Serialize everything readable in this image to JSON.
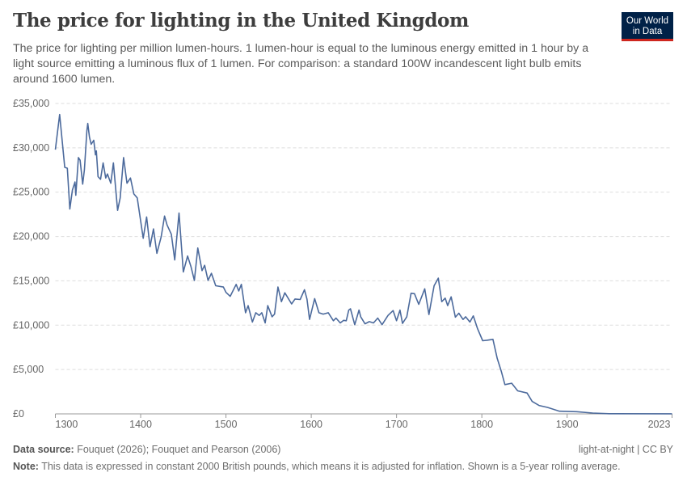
{
  "header": {
    "title": "The price for lighting in the United Kingdom",
    "subtitle": "The price for lighting per million lumen-hours. 1 lumen-hour is equal to the luminous energy emitted in 1 hour by a light source emitting a luminous flux of 1 lumen. For comparison: a standard 100W incandescent light bulb emits around 1600 lumen.",
    "logo": "Our World in Data"
  },
  "footer": {
    "source_label": "Data source:",
    "source": "Fouquet (2026); Fouquet and Pearson (2006)",
    "note_label": "Note:",
    "note": "This data is expressed in constant 2000 British pounds, which means it is adjusted for inflation. Shown is a 5-year rolling average.",
    "license": "light-at-night | CC BY"
  },
  "colors": {
    "line": "#4c6a9c",
    "grid": "#dddddd",
    "text": "#5b5b5b"
  },
  "chart_data": {
    "type": "line",
    "title": "The price for lighting in the United Kingdom",
    "xlim": [
      1300,
      2023
    ],
    "ylim": [
      0,
      35000
    ],
    "grid": true,
    "x_ticks": [
      "1300",
      "1400",
      "1500",
      "1600",
      "1700",
      "1800",
      "1900",
      "2023"
    ],
    "y_ticks": [
      "£0",
      "£5,000",
      "£10,000",
      "£15,000",
      "£20,000",
      "£25,000",
      "£30,000",
      "£35,000"
    ],
    "series": [
      {
        "points": [
          [
            1300,
            29800
          ],
          [
            1305,
            33750
          ],
          [
            1311,
            27800
          ],
          [
            1314,
            27700
          ],
          [
            1317,
            23100
          ],
          [
            1320,
            25250
          ],
          [
            1323,
            26150
          ],
          [
            1324,
            24650
          ],
          [
            1327,
            28900
          ],
          [
            1329,
            28600
          ],
          [
            1332,
            25900
          ],
          [
            1334,
            27500
          ],
          [
            1337,
            31950
          ],
          [
            1338,
            32750
          ],
          [
            1340,
            31200
          ],
          [
            1342,
            30400
          ],
          [
            1345,
            30850
          ],
          [
            1347,
            29200
          ],
          [
            1348,
            29650
          ],
          [
            1350,
            26750
          ],
          [
            1353,
            26450
          ],
          [
            1356,
            28300
          ],
          [
            1359,
            26600
          ],
          [
            1361,
            27050
          ],
          [
            1365,
            26000
          ],
          [
            1368,
            28300
          ],
          [
            1373,
            22950
          ],
          [
            1376,
            24350
          ],
          [
            1380,
            28900
          ],
          [
            1384,
            26000
          ],
          [
            1388,
            26600
          ],
          [
            1392,
            24800
          ],
          [
            1396,
            24350
          ],
          [
            1403,
            19800
          ],
          [
            1407,
            22200
          ],
          [
            1411,
            18850
          ],
          [
            1415,
            20850
          ],
          [
            1419,
            18100
          ],
          [
            1424,
            19950
          ],
          [
            1428,
            22300
          ],
          [
            1431,
            21300
          ],
          [
            1436,
            20250
          ],
          [
            1440,
            17350
          ],
          [
            1445,
            22650
          ],
          [
            1450,
            16000
          ],
          [
            1455,
            17800
          ],
          [
            1459,
            16600
          ],
          [
            1463,
            15050
          ],
          [
            1467,
            18700
          ],
          [
            1472,
            16150
          ],
          [
            1475,
            16750
          ],
          [
            1479,
            15050
          ],
          [
            1483,
            15850
          ],
          [
            1488,
            14450
          ],
          [
            1497,
            14300
          ],
          [
            1500,
            13700
          ],
          [
            1505,
            13250
          ],
          [
            1512,
            14600
          ],
          [
            1515,
            13850
          ],
          [
            1518,
            14600
          ],
          [
            1523,
            11400
          ],
          [
            1526,
            12200
          ],
          [
            1531,
            10350
          ],
          [
            1535,
            11400
          ],
          [
            1539,
            11100
          ],
          [
            1542,
            11400
          ],
          [
            1546,
            10250
          ],
          [
            1549,
            12200
          ],
          [
            1554,
            10950
          ],
          [
            1557,
            11250
          ],
          [
            1561,
            14300
          ],
          [
            1565,
            12650
          ],
          [
            1569,
            13650
          ],
          [
            1577,
            12400
          ],
          [
            1581,
            12950
          ],
          [
            1587,
            12900
          ],
          [
            1592,
            14000
          ],
          [
            1595,
            12950
          ],
          [
            1598,
            10650
          ],
          [
            1604,
            13000
          ],
          [
            1609,
            11400
          ],
          [
            1614,
            11250
          ],
          [
            1620,
            11400
          ],
          [
            1626,
            10500
          ],
          [
            1629,
            10800
          ],
          [
            1634,
            10250
          ],
          [
            1638,
            10550
          ],
          [
            1641,
            10500
          ],
          [
            1644,
            11700
          ],
          [
            1646,
            11850
          ],
          [
            1651,
            10050
          ],
          [
            1656,
            11700
          ],
          [
            1658,
            10950
          ],
          [
            1663,
            10150
          ],
          [
            1668,
            10400
          ],
          [
            1673,
            10250
          ],
          [
            1678,
            10800
          ],
          [
            1683,
            10050
          ],
          [
            1690,
            11100
          ],
          [
            1696,
            11650
          ],
          [
            1700,
            10500
          ],
          [
            1704,
            11700
          ],
          [
            1707,
            10200
          ],
          [
            1712,
            10950
          ],
          [
            1717,
            13600
          ],
          [
            1721,
            13550
          ],
          [
            1726,
            12350
          ],
          [
            1733,
            14100
          ],
          [
            1738,
            11200
          ],
          [
            1744,
            14450
          ],
          [
            1749,
            15300
          ],
          [
            1753,
            12650
          ],
          [
            1757,
            13050
          ],
          [
            1760,
            12200
          ],
          [
            1764,
            13200
          ],
          [
            1769,
            10900
          ],
          [
            1773,
            11350
          ],
          [
            1778,
            10650
          ],
          [
            1781,
            10950
          ],
          [
            1786,
            10350
          ],
          [
            1790,
            11050
          ],
          [
            1795,
            9600
          ],
          [
            1801,
            8250
          ],
          [
            1806,
            8300
          ],
          [
            1813,
            8400
          ],
          [
            1818,
            6250
          ],
          [
            1823,
            4750
          ],
          [
            1827,
            3300
          ],
          [
            1835,
            3450
          ],
          [
            1842,
            2600
          ],
          [
            1853,
            2350
          ],
          [
            1859,
            1400
          ],
          [
            1867,
            950
          ],
          [
            1877,
            730
          ],
          [
            1891,
            300
          ],
          [
            1911,
            250
          ],
          [
            1930,
            90
          ],
          [
            1949,
            20
          ],
          [
            2023,
            10
          ]
        ]
      }
    ]
  }
}
